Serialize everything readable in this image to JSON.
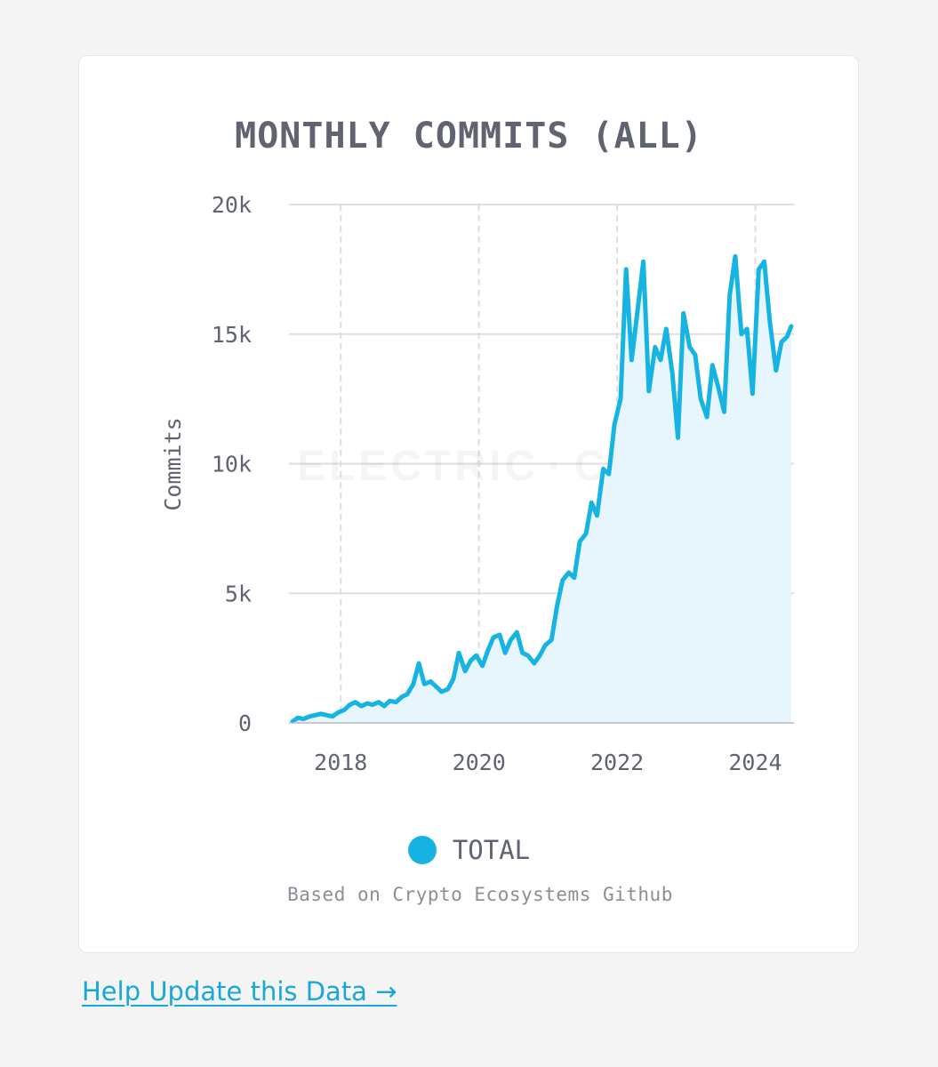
{
  "card": {
    "source_note": "Based on Crypto Ecosystems Github"
  },
  "links": {
    "help_update": "Help Update this Data →"
  },
  "colors": {
    "line": "#17b4e3",
    "area": "#e6f6fc",
    "grid": "#dcdee3",
    "text": "#5f6470"
  },
  "watermark": {
    "left": "ELECTRIC",
    "right": "CAPITAL"
  },
  "chart_data": {
    "type": "area",
    "title": "MONTHLY COMMITS (ALL)",
    "xlabel": "",
    "ylabel": "Commits",
    "xlim": [
      2017.25,
      2024.56
    ],
    "ylim": [
      0,
      20000
    ],
    "x_ticks": [
      2018,
      2020,
      2022,
      2024
    ],
    "x_tick_labels": [
      "2018",
      "2020",
      "2022",
      "2024"
    ],
    "y_ticks": [
      0,
      5000,
      10000,
      15000,
      20000
    ],
    "y_tick_labels": [
      "0",
      "5k",
      "10k",
      "15k",
      "20k"
    ],
    "grid": true,
    "legend": {
      "position": "bottom-center",
      "entries": [
        "TOTAL"
      ]
    },
    "series": [
      {
        "name": "TOTAL",
        "x": [
          2017.3,
          2017.38,
          2017.46,
          2017.55,
          2017.63,
          2017.71,
          2017.8,
          2017.88,
          2017.96,
          2018.05,
          2018.13,
          2018.21,
          2018.3,
          2018.38,
          2018.46,
          2018.55,
          2018.63,
          2018.71,
          2018.8,
          2018.88,
          2018.96,
          2019.05,
          2019.13,
          2019.21,
          2019.3,
          2019.38,
          2019.46,
          2019.55,
          2019.63,
          2019.71,
          2019.8,
          2019.88,
          2019.96,
          2020.05,
          2020.13,
          2020.21,
          2020.3,
          2020.38,
          2020.46,
          2020.55,
          2020.63,
          2020.71,
          2020.8,
          2020.88,
          2020.96,
          2021.05,
          2021.13,
          2021.21,
          2021.3,
          2021.38,
          2021.46,
          2021.55,
          2021.63,
          2021.71,
          2021.8,
          2021.88,
          2021.96,
          2022.05,
          2022.13,
          2022.21,
          2022.3,
          2022.38,
          2022.46,
          2022.55,
          2022.63,
          2022.71,
          2022.8,
          2022.88,
          2022.96,
          2023.05,
          2023.13,
          2023.21,
          2023.3,
          2023.38,
          2023.46,
          2023.55,
          2023.63,
          2023.71,
          2023.8,
          2023.88,
          2023.96,
          2024.05,
          2024.13,
          2024.21,
          2024.3,
          2024.38,
          2024.46,
          2024.52
        ],
        "values": [
          50,
          200,
          150,
          250,
          300,
          350,
          300,
          250,
          400,
          500,
          700,
          800,
          650,
          750,
          700,
          800,
          650,
          850,
          800,
          1000,
          1100,
          1500,
          2300,
          1500,
          1600,
          1400,
          1200,
          1300,
          1700,
          2700,
          2000,
          2400,
          2600,
          2200,
          2800,
          3300,
          3400,
          2700,
          3200,
          3500,
          2700,
          2600,
          2300,
          2600,
          3000,
          3200,
          4500,
          5500,
          5800,
          5600,
          7000,
          7300,
          8500,
          8000,
          9800,
          9600,
          11500,
          12500,
          17500,
          14000,
          16000,
          17800,
          12800,
          14500,
          14000,
          15200,
          13500,
          11000,
          15800,
          14500,
          14200,
          12500,
          11800,
          13800,
          13000,
          12000,
          16500,
          18000,
          15000,
          15200,
          12700,
          17500,
          17800,
          15500,
          13600,
          14700,
          14900,
          15300
        ]
      }
    ]
  }
}
